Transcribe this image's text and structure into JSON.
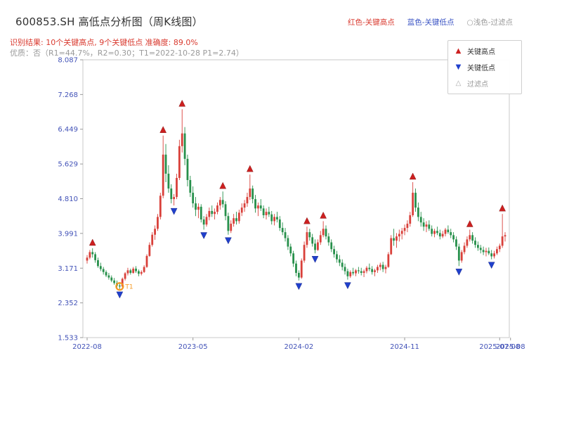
{
  "title": "600853.SH 高低点分析图（周K线图）",
  "subtitle_result": "识别结果: 10个关键高点, 9个关键低点  准确度: 89.0%",
  "subtitle_quality": "优质：否（R1=44.7%，R2=0.30；T1=2022-10-28 P1=2.74）",
  "header_legend": {
    "high": "红色-关键高点",
    "low": "蓝色-关键低点",
    "filter": "○浅色-过滤点"
  },
  "legend_box": {
    "high": "关键高点",
    "low": "关键低点",
    "filter": "过滤点"
  },
  "colors": {
    "up_candle": "#d9403a",
    "down_candle": "#27904b",
    "key_high": "#cc2020",
    "key_low": "#2040cc",
    "filtered": "#aaaaaa",
    "t1": "#f59a23",
    "axis_label": "#4353b8",
    "subtitle_red": "#d93a2f",
    "subtitle_gray": "#9a9a9a"
  },
  "chart_data": {
    "type": "candlestick",
    "interval": "weekly",
    "start_date": "2022-08-05",
    "title": "600853.SH 高低点分析图（周K线图）",
    "ylim": [
      1.533,
      8.087
    ],
    "yticks": [
      8.087,
      7.268,
      6.449,
      5.629,
      4.81,
      3.991,
      3.171,
      2.352,
      1.533
    ],
    "xticks": [
      {
        "label": "2022-08",
        "week": 0
      },
      {
        "label": "2023-05",
        "week": 39
      },
      {
        "label": "2024-02",
        "week": 78
      },
      {
        "label": "2024-11",
        "week": 117
      },
      {
        "label": "2025-08",
        "week": 156
      },
      {
        "label": "2025-07-08",
        "week": 152
      }
    ],
    "candles": [
      [
        3.35,
        3.48,
        3.28,
        3.42
      ],
      [
        3.42,
        3.6,
        3.38,
        3.55
      ],
      [
        3.55,
        3.64,
        3.42,
        3.5
      ],
      [
        3.5,
        3.55,
        3.3,
        3.36
      ],
      [
        3.36,
        3.42,
        3.18,
        3.22
      ],
      [
        3.22,
        3.3,
        3.1,
        3.15
      ],
      [
        3.15,
        3.2,
        3.02,
        3.08
      ],
      [
        3.08,
        3.12,
        2.96,
        3.0
      ],
      [
        3.0,
        3.06,
        2.9,
        2.95
      ],
      [
        2.95,
        3.0,
        2.84,
        2.88
      ],
      [
        2.88,
        2.94,
        2.78,
        2.82
      ],
      [
        2.82,
        2.88,
        2.72,
        2.76
      ],
      [
        2.76,
        2.82,
        2.68,
        2.74
      ],
      [
        2.74,
        2.95,
        2.72,
        2.92
      ],
      [
        2.92,
        3.08,
        2.88,
        3.05
      ],
      [
        3.05,
        3.18,
        3.0,
        3.12
      ],
      [
        3.12,
        3.16,
        3.02,
        3.06
      ],
      [
        3.06,
        3.2,
        3.04,
        3.16
      ],
      [
        3.16,
        3.22,
        3.06,
        3.1
      ],
      [
        3.1,
        3.14,
        2.98,
        3.04
      ],
      [
        3.04,
        3.12,
        3.0,
        3.08
      ],
      [
        3.08,
        3.24,
        3.06,
        3.2
      ],
      [
        3.2,
        3.5,
        3.18,
        3.46
      ],
      [
        3.46,
        3.78,
        3.44,
        3.72
      ],
      [
        3.72,
        4.02,
        3.68,
        3.96
      ],
      [
        3.96,
        4.18,
        3.84,
        4.1
      ],
      [
        4.1,
        4.45,
        4.05,
        4.38
      ],
      [
        4.38,
        4.95,
        4.32,
        4.88
      ],
      [
        4.88,
        6.3,
        4.82,
        5.85
      ],
      [
        5.85,
        6.1,
        5.2,
        5.4
      ],
      [
        5.4,
        5.6,
        4.95,
        5.05
      ],
      [
        5.05,
        5.15,
        4.7,
        4.8
      ],
      [
        4.8,
        4.92,
        4.65,
        4.85
      ],
      [
        4.85,
        5.4,
        4.8,
        5.3
      ],
      [
        5.3,
        6.2,
        5.25,
        6.05
      ],
      [
        6.05,
        6.92,
        5.9,
        6.35
      ],
      [
        6.35,
        6.5,
        5.6,
        5.75
      ],
      [
        5.75,
        5.85,
        5.1,
        5.25
      ],
      [
        5.25,
        5.35,
        4.85,
        4.95
      ],
      [
        4.95,
        5.1,
        4.6,
        4.7
      ],
      [
        4.7,
        4.85,
        4.4,
        4.55
      ],
      [
        4.55,
        4.7,
        4.35,
        4.62
      ],
      [
        4.62,
        4.68,
        4.25,
        4.32
      ],
      [
        4.32,
        4.4,
        4.08,
        4.2
      ],
      [
        4.2,
        4.45,
        4.15,
        4.38
      ],
      [
        4.38,
        4.6,
        4.3,
        4.52
      ],
      [
        4.52,
        4.65,
        4.38,
        4.45
      ],
      [
        4.45,
        4.58,
        4.32,
        4.5
      ],
      [
        4.5,
        4.72,
        4.44,
        4.65
      ],
      [
        4.65,
        4.85,
        4.55,
        4.78
      ],
      [
        4.78,
        4.98,
        4.6,
        4.68
      ],
      [
        4.68,
        4.75,
        4.3,
        4.4
      ],
      [
        4.4,
        4.48,
        3.96,
        4.05
      ],
      [
        4.05,
        4.3,
        4.0,
        4.22
      ],
      [
        4.22,
        4.45,
        4.15,
        4.35
      ],
      [
        4.35,
        4.5,
        4.2,
        4.28
      ],
      [
        4.28,
        4.55,
        4.22,
        4.48
      ],
      [
        4.48,
        4.7,
        4.4,
        4.6
      ],
      [
        4.6,
        4.78,
        4.5,
        4.7
      ],
      [
        4.7,
        4.95,
        4.62,
        4.85
      ],
      [
        4.85,
        5.38,
        4.78,
        5.05
      ],
      [
        5.05,
        5.12,
        4.7,
        4.8
      ],
      [
        4.8,
        4.9,
        4.48,
        4.58
      ],
      [
        4.58,
        4.72,
        4.4,
        4.65
      ],
      [
        4.65,
        4.8,
        4.52,
        4.58
      ],
      [
        4.58,
        4.65,
        4.35,
        4.42
      ],
      [
        4.42,
        4.58,
        4.32,
        4.5
      ],
      [
        4.5,
        4.62,
        4.38,
        4.44
      ],
      [
        4.44,
        4.52,
        4.2,
        4.28
      ],
      [
        4.28,
        4.45,
        4.18,
        4.38
      ],
      [
        4.38,
        4.5,
        4.25,
        4.32
      ],
      [
        4.32,
        4.4,
        4.05,
        4.12
      ],
      [
        4.12,
        4.25,
        3.95,
        4.02
      ],
      [
        4.02,
        4.12,
        3.8,
        3.88
      ],
      [
        3.88,
        3.95,
        3.6,
        3.68
      ],
      [
        3.68,
        3.75,
        3.45,
        3.52
      ],
      [
        3.52,
        3.58,
        3.2,
        3.28
      ],
      [
        3.28,
        3.35,
        2.98,
        3.06
      ],
      [
        3.06,
        3.12,
        2.88,
        2.95
      ],
      [
        2.95,
        3.4,
        2.92,
        3.35
      ],
      [
        3.35,
        3.8,
        3.3,
        3.72
      ],
      [
        3.72,
        4.15,
        3.65,
        4.02
      ],
      [
        4.02,
        4.1,
        3.82,
        3.9
      ],
      [
        3.9,
        3.98,
        3.68,
        3.75
      ],
      [
        3.75,
        3.85,
        3.52,
        3.6
      ],
      [
        3.6,
        3.85,
        3.58,
        3.78
      ],
      [
        3.78,
        4.05,
        3.72,
        3.95
      ],
      [
        3.95,
        4.28,
        3.9,
        4.1
      ],
      [
        4.1,
        4.18,
        3.85,
        3.92
      ],
      [
        3.92,
        4.0,
        3.7,
        3.78
      ],
      [
        3.78,
        3.85,
        3.55,
        3.62
      ],
      [
        3.62,
        3.7,
        3.42,
        3.5
      ],
      [
        3.5,
        3.58,
        3.3,
        3.38
      ],
      [
        3.38,
        3.48,
        3.22,
        3.3
      ],
      [
        3.3,
        3.38,
        3.12,
        3.2
      ],
      [
        3.2,
        3.28,
        3.02,
        3.1
      ],
      [
        3.1,
        3.16,
        2.9,
        2.98
      ],
      [
        2.98,
        3.12,
        2.94,
        3.08
      ],
      [
        3.08,
        3.18,
        3.0,
        3.05
      ],
      [
        3.05,
        3.15,
        2.98,
        3.12
      ],
      [
        3.12,
        3.2,
        3.04,
        3.1
      ],
      [
        3.1,
        3.18,
        3.0,
        3.06
      ],
      [
        3.06,
        3.14,
        2.96,
        3.1
      ],
      [
        3.1,
        3.22,
        3.05,
        3.18
      ],
      [
        3.18,
        3.28,
        3.1,
        3.15
      ],
      [
        3.15,
        3.22,
        3.02,
        3.08
      ],
      [
        3.08,
        3.16,
        2.98,
        3.12
      ],
      [
        3.12,
        3.25,
        3.06,
        3.2
      ],
      [
        3.2,
        3.3,
        3.12,
        3.25
      ],
      [
        3.25,
        3.32,
        3.08,
        3.15
      ],
      [
        3.15,
        3.25,
        3.05,
        3.2
      ],
      [
        3.2,
        3.55,
        3.18,
        3.5
      ],
      [
        3.5,
        3.95,
        3.48,
        3.88
      ],
      [
        3.88,
        4.1,
        3.7,
        3.82
      ],
      [
        3.82,
        4.0,
        3.65,
        3.92
      ],
      [
        3.92,
        4.08,
        3.8,
        3.98
      ],
      [
        3.98,
        4.12,
        3.85,
        4.05
      ],
      [
        4.05,
        4.2,
        3.95,
        4.12
      ],
      [
        4.12,
        4.3,
        4.02,
        4.22
      ],
      [
        4.22,
        4.5,
        4.15,
        4.42
      ],
      [
        4.42,
        5.2,
        4.38,
        4.95
      ],
      [
        4.95,
        5.05,
        4.5,
        4.6
      ],
      [
        4.6,
        4.72,
        4.28,
        4.38
      ],
      [
        4.38,
        4.5,
        4.15,
        4.25
      ],
      [
        4.25,
        4.35,
        4.05,
        4.15
      ],
      [
        4.15,
        4.28,
        4.02,
        4.2
      ],
      [
        4.2,
        4.3,
        4.05,
        4.1
      ],
      [
        4.1,
        4.18,
        3.92,
        3.98
      ],
      [
        3.98,
        4.1,
        3.9,
        4.05
      ],
      [
        4.05,
        4.15,
        3.95,
        4.0
      ],
      [
        4.0,
        4.08,
        3.85,
        3.92
      ],
      [
        3.92,
        4.05,
        3.88,
        3.98
      ],
      [
        3.98,
        4.12,
        3.92,
        4.08
      ],
      [
        4.08,
        4.18,
        3.98,
        4.02
      ],
      [
        4.02,
        4.1,
        3.88,
        3.95
      ],
      [
        3.95,
        4.02,
        3.78,
        3.85
      ],
      [
        3.85,
        3.92,
        3.6,
        3.68
      ],
      [
        3.68,
        3.75,
        3.22,
        3.35
      ],
      [
        3.35,
        3.6,
        3.3,
        3.55
      ],
      [
        3.55,
        3.78,
        3.5,
        3.7
      ],
      [
        3.7,
        3.92,
        3.65,
        3.85
      ],
      [
        3.85,
        4.08,
        3.8,
        3.95
      ],
      [
        3.95,
        4.02,
        3.75,
        3.82
      ],
      [
        3.82,
        3.9,
        3.65,
        3.72
      ],
      [
        3.72,
        3.8,
        3.58,
        3.65
      ],
      [
        3.65,
        3.72,
        3.52,
        3.6
      ],
      [
        3.6,
        3.68,
        3.48,
        3.55
      ],
      [
        3.55,
        3.65,
        3.45,
        3.58
      ],
      [
        3.58,
        3.66,
        3.48,
        3.52
      ],
      [
        3.52,
        3.6,
        3.38,
        3.45
      ],
      [
        3.45,
        3.58,
        3.4,
        3.52
      ],
      [
        3.52,
        3.68,
        3.48,
        3.62
      ],
      [
        3.62,
        3.75,
        3.55,
        3.7
      ],
      [
        3.7,
        4.45,
        3.65,
        3.92
      ],
      [
        3.92,
        4.02,
        3.8,
        3.95
      ]
    ],
    "key_highs": [
      {
        "week": 2,
        "value": 3.64
      },
      {
        "week": 28,
        "value": 6.3
      },
      {
        "week": 35,
        "value": 6.92
      },
      {
        "week": 50,
        "value": 4.98
      },
      {
        "week": 60,
        "value": 5.38
      },
      {
        "week": 81,
        "value": 4.15
      },
      {
        "week": 87,
        "value": 4.28
      },
      {
        "week": 120,
        "value": 5.2
      },
      {
        "week": 141,
        "value": 4.08
      },
      {
        "week": 153,
        "value": 4.45
      }
    ],
    "key_lows": [
      {
        "week": 12,
        "value": 2.68
      },
      {
        "week": 32,
        "value": 4.65
      },
      {
        "week": 43,
        "value": 4.08
      },
      {
        "week": 52,
        "value": 3.96
      },
      {
        "week": 78,
        "value": 2.88
      },
      {
        "week": 84,
        "value": 3.52
      },
      {
        "week": 96,
        "value": 2.9
      },
      {
        "week": 137,
        "value": 3.22
      },
      {
        "week": 149,
        "value": 3.38
      }
    ],
    "t1": {
      "week": 12,
      "value": 2.74,
      "label": "T1",
      "date": "2022-10-28",
      "price": 2.74
    }
  }
}
